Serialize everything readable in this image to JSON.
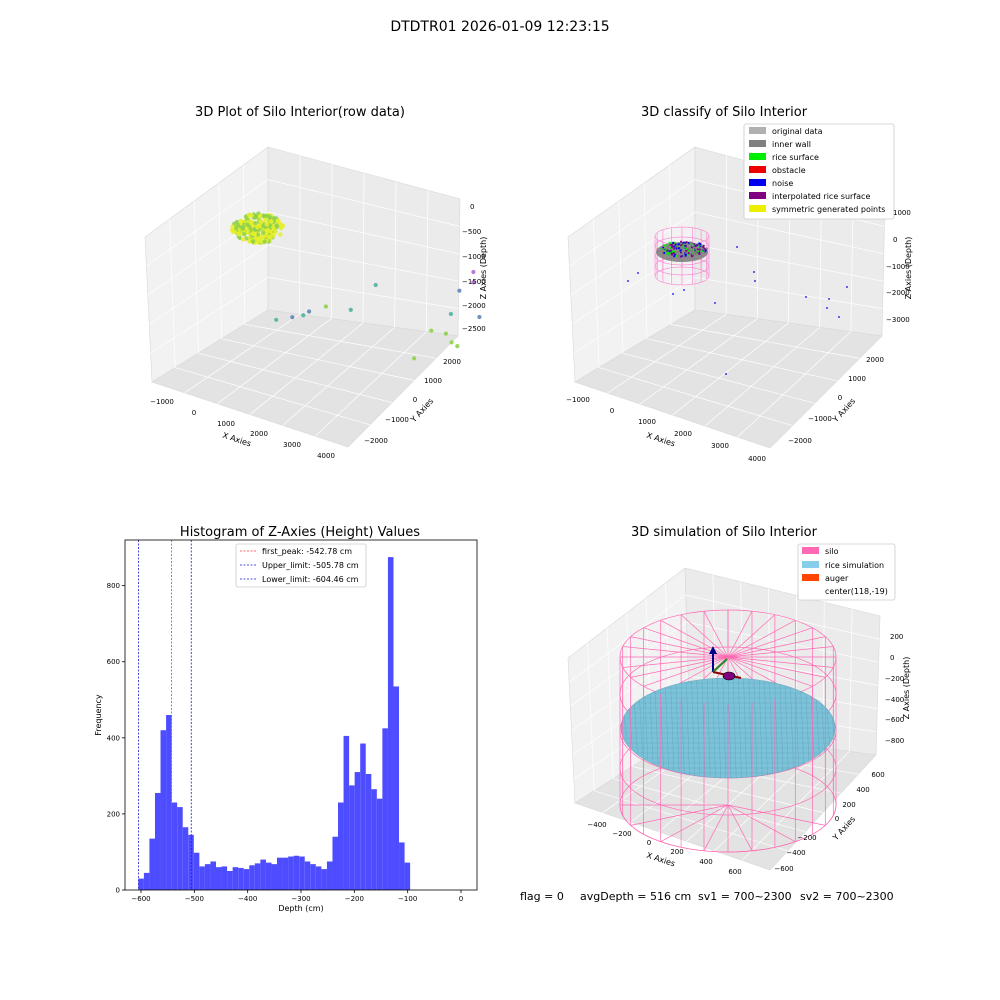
{
  "figure": {
    "suptitle": "DTDTR01 2026-01-09 12:23:15",
    "footer": {
      "flag": "flag = 0",
      "avg_depth": "avgDepth = 516 cm",
      "sv1": "sv1 = 700~2300",
      "sv2": "sv2 = 700~2300"
    }
  },
  "chart_data": [
    {
      "type": "scatter",
      "title": "3D Plot of Silo Interior(row data)",
      "xlabel": "X Axies",
      "ylabel": "Y Axies",
      "zlabel": "Z Axies (Depth)",
      "x_ticks": [
        "−1000",
        "0",
        "1000",
        "2000",
        "3000",
        "4000"
      ],
      "y_ticks": [
        "−2000",
        "−1000",
        "0",
        "1000",
        "2000"
      ],
      "z_ticks": [
        "0",
        "−500",
        "−1000",
        "−1500",
        "−2000",
        "−2500"
      ],
      "colors": {
        "cluster_light": "#e6ef2a",
        "cluster_dark": "#8ed14a",
        "teal": "#4fb3a0",
        "blue": "#5f86b8",
        "purple": "#b06ad6",
        "navy": "#3b3f8f"
      },
      "points": [
        {
          "x": 1950,
          "y": -100,
          "z": -2700,
          "color": "teal"
        },
        {
          "x": 2700,
          "y": 1100,
          "z": -1800,
          "color": "teal"
        },
        {
          "x": 3300,
          "y": 1100,
          "z": -1800,
          "color": "blue"
        },
        {
          "x": 3000,
          "y": 1350,
          "z": -2550,
          "color": "purple"
        },
        {
          "x": 3000,
          "y": 1350,
          "z": -2350,
          "color": "purple"
        },
        {
          "x": 2600,
          "y": 1500,
          "z": -2100,
          "color": "blue"
        },
        {
          "x": 1800,
          "y": 1800,
          "z": -1150,
          "color": "cluster_dark"
        },
        {
          "x": 1900,
          "y": 2100,
          "z": -1000,
          "color": "cluster_dark"
        },
        {
          "x": 1950,
          "y": 2200,
          "z": -800,
          "color": "cluster_dark"
        },
        {
          "x": 2000,
          "y": 2300,
          "z": -700,
          "color": "cluster_dark"
        },
        {
          "x": 1300,
          "y": 2000,
          "z": -500,
          "color": "cluster_dark"
        },
        {
          "x": -700,
          "y": 700,
          "z": -1500,
          "color": "teal"
        },
        {
          "x": -500,
          "y": 900,
          "z": -1500,
          "color": "blue"
        },
        {
          "x": -200,
          "y": 800,
          "z": -1600,
          "color": "teal"
        },
        {
          "x": 0,
          "y": 1200,
          "z": -1650,
          "color": "cluster_dark"
        },
        {
          "x": 200,
          "y": 400,
          "z": -1850,
          "color": "blue"
        },
        {
          "x": 800,
          "y": 800,
          "z": -1800,
          "color": "teal"
        }
      ]
    },
    {
      "type": "scatter",
      "title": "3D classify of Silo Interior",
      "xlabel": "X Axies",
      "ylabel": "Y Axies",
      "zlabel": "Z Axies (Depth)",
      "x_ticks": [
        "−1000",
        "0",
        "1000",
        "2000",
        "3000",
        "4000"
      ],
      "y_ticks": [
        "−2000",
        "−1000",
        "0",
        "1000",
        "2000"
      ],
      "z_ticks": [
        "1000",
        "0",
        "−1000",
        "−2000",
        "−3000"
      ],
      "legend": [
        {
          "label": "original data",
          "color": "#b0b0b0"
        },
        {
          "label": "inner wall",
          "color": "#808080"
        },
        {
          "label": "rice surface",
          "color": "#00ee00"
        },
        {
          "label": "obstacle",
          "color": "#ee0000"
        },
        {
          "label": "noise",
          "color": "#0000ee"
        },
        {
          "label": "interpolated rice surface",
          "color": "#800080"
        },
        {
          "label": "symmetric generated points",
          "color": "#eeee00"
        }
      ]
    },
    {
      "type": "bar",
      "title": "Histogram of Z-Axies (Height) Values",
      "xlabel": "Depth (cm)",
      "ylabel": "Frequency",
      "xlim": [
        -630,
        30
      ],
      "ylim": [
        0,
        920
      ],
      "x_ticks": [
        -600,
        -500,
        -400,
        -300,
        -200,
        -100,
        0
      ],
      "x_tick_labels": [
        "−600",
        "−500",
        "−400",
        "−300",
        "−200",
        "−100",
        "0"
      ],
      "y_ticks": [
        0,
        200,
        400,
        600,
        800
      ],
      "y_tick_labels": [
        "0",
        "200",
        "400",
        "600",
        "800"
      ],
      "bin_start": -605,
      "bin_width": 10.4,
      "values": [
        30,
        45,
        135,
        255,
        420,
        460,
        230,
        218,
        165,
        145,
        98,
        62,
        68,
        75,
        60,
        62,
        50,
        60,
        58,
        55,
        65,
        70,
        80,
        72,
        68,
        85,
        85,
        88,
        90,
        88,
        75,
        68,
        62,
        55,
        75,
        140,
        230,
        405,
        275,
        310,
        385,
        305,
        265,
        240,
        425,
        875,
        535,
        125,
        72
      ],
      "bar_color": "#4d4dff",
      "lines": [
        {
          "label": "first_peak: -542.78 cm",
          "x": -542.78,
          "color": "#ff3333"
        },
        {
          "label": "Upper_limit: -505.78 cm",
          "x": -505.78,
          "color": "#1a1acc"
        },
        {
          "label": "Lower_limit: -604.46 cm",
          "x": -604.46,
          "color": "#1a1acc"
        }
      ]
    },
    {
      "type": "scatter",
      "title": "3D simulation of Silo Interior",
      "xlabel": "X Axies",
      "ylabel": "Y Axies",
      "zlabel": "Z Axies (Depth)",
      "x_ticks": [
        "−400",
        "−200",
        "0",
        "200",
        "400",
        "600"
      ],
      "y_ticks": [
        "−600",
        "−400",
        "−200",
        "0",
        "200",
        "400",
        "600"
      ],
      "z_ticks": [
        "200",
        "0",
        "−200",
        "−400",
        "−600",
        "−800"
      ],
      "legend": [
        {
          "label": "silo",
          "color": "#ff69b4"
        },
        {
          "label": "rice simulation",
          "color": "#87ceeb"
        },
        {
          "label": "auger",
          "color": "#ff4500"
        },
        {
          "label": "center(118,-19)",
          "color": ""
        }
      ]
    }
  ]
}
